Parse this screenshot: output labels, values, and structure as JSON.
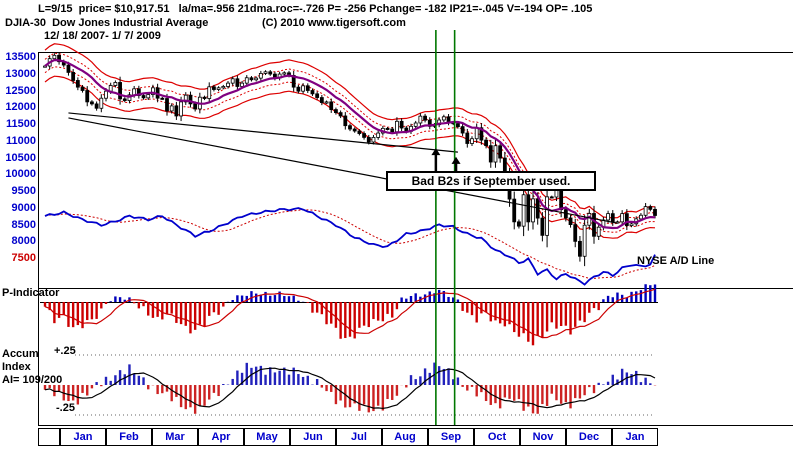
{
  "header": {
    "stats_line": "L=9/15  price= $10,917.51   la/ma=.956 21dma.roc=-.726 P= -256 Pchange= -182 IP21=-.045 V=-194 OP= .105",
    "title": "DJIA-30  Dow Jones Industrial Average",
    "copyright": "(C) 2010 www.tigersoft.com",
    "date_range": "12/ 18/ 2007- 1/ 7/ 2009"
  },
  "labels": {
    "p_indicator": "P-Indicator",
    "accum_1": "Accum",
    "accum_2": "Index",
    "accum_3": "AI= 109/200",
    "plus": "+.25",
    "minus": "-.25",
    "ad_line": "NYSE A/D Line",
    "annotation": "Bad B2s if September used."
  },
  "chart_data": {
    "type": "candlestick",
    "title": "DJIA-30 Dow Jones Industrial Average",
    "period": "12/18/2007 - 1/7/2009",
    "ylim": [
      7500,
      13500
    ],
    "y_ticks": [
      13500,
      13000,
      12500,
      12000,
      11500,
      11000,
      10500,
      10000,
      9500,
      9000,
      8500,
      8000,
      7500
    ],
    "axis_highlight_tick": 7500,
    "months": [
      "Jan",
      "Feb",
      "Mar",
      "Apr",
      "May",
      "Jun",
      "Jul",
      "Aug",
      "Sep",
      "Oct",
      "Nov",
      "Dec",
      "Jan"
    ],
    "close": [
      13230,
      13450,
      13550,
      13360,
      13260,
      13040,
      12800,
      12600,
      12500,
      12160,
      12100,
      11970,
      12270,
      12480,
      12650,
      12740,
      12250,
      12200,
      12370,
      12550,
      12350,
      12280,
      12380,
      12580,
      12270,
      12260,
      11890,
      12040,
      11740,
      12160,
      12360,
      12100,
      11950,
      12300,
      12260,
      12610,
      12530,
      12580,
      12620,
      12720,
      12850,
      12620,
      12720,
      12880,
      12820,
      12870,
      13010,
      13058,
      12990,
      12870,
      12990,
      13028,
      12950,
      12600,
      12480,
      12640,
      12500,
      12400,
      12290,
      12140,
      12160,
      11930,
      11840,
      11740,
      11450,
      11350,
      11290,
      11215,
      11100,
      10963,
      11100,
      11230,
      11370,
      11350,
      11270,
      11580,
      11380,
      11280,
      11430,
      11530,
      11734,
      11615,
      11430,
      11480,
      11620,
      11715,
      11544,
      11511,
      11422,
      11230,
      10918,
      11060,
      11388,
      11019,
      10854,
      10365,
      10851,
      10483,
      9955,
      9258,
      8579,
      8451,
      9387,
      8578,
      9265,
      8691,
      8176,
      9325,
      9320,
      9625,
      8943,
      8696,
      8497,
      7997,
      7552,
      8479,
      8829,
      8149,
      8419,
      8635,
      8824,
      8565,
      8579,
      8824,
      8468,
      8519,
      8668,
      8776,
      9034,
      8952,
      8769
    ],
    "ma_window": 10,
    "band_pct": 0.036,
    "inner_band_pct": 0.015,
    "ad_line": {
      "name": "NYSE A/D Line",
      "anchors": [
        [
          0,
          0.8
        ],
        [
          4,
          0.84
        ],
        [
          8,
          0.76
        ],
        [
          12,
          0.7
        ],
        [
          15,
          0.74
        ],
        [
          18,
          0.8
        ],
        [
          22,
          0.76
        ],
        [
          25,
          0.8
        ],
        [
          28,
          0.7
        ],
        [
          32,
          0.58
        ],
        [
          35,
          0.63
        ],
        [
          38,
          0.7
        ],
        [
          42,
          0.8
        ],
        [
          46,
          0.84
        ],
        [
          50,
          0.87
        ],
        [
          55,
          0.88
        ],
        [
          58,
          0.8
        ],
        [
          62,
          0.7
        ],
        [
          66,
          0.56
        ],
        [
          70,
          0.48
        ],
        [
          73,
          0.46
        ],
        [
          77,
          0.6
        ],
        [
          80,
          0.63
        ],
        [
          84,
          0.7
        ],
        [
          87,
          0.68
        ],
        [
          90,
          0.6
        ],
        [
          93,
          0.55
        ],
        [
          96,
          0.42
        ],
        [
          99,
          0.35
        ],
        [
          101,
          0.28
        ],
        [
          103,
          0.32
        ],
        [
          105,
          0.16
        ],
        [
          107,
          0.2
        ],
        [
          109,
          0.1
        ],
        [
          111,
          0.16
        ],
        [
          113,
          0.1
        ],
        [
          115,
          0.05
        ],
        [
          117,
          0.12
        ],
        [
          119,
          0.18
        ],
        [
          121,
          0.14
        ],
        [
          123,
          0.22
        ],
        [
          125,
          0.26
        ],
        [
          127,
          0.24
        ],
        [
          129,
          0.26
        ],
        [
          130,
          0.36
        ]
      ]
    },
    "p_indicator": {
      "name": "P-Indicator",
      "anchors": [
        [
          0,
          -0.15
        ],
        [
          2,
          -0.4
        ],
        [
          4,
          -0.3
        ],
        [
          6,
          -0.55
        ],
        [
          8,
          -0.5
        ],
        [
          10,
          -0.45
        ],
        [
          12,
          -0.25
        ],
        [
          14,
          0.1
        ],
        [
          16,
          0.25
        ],
        [
          18,
          0.15
        ],
        [
          20,
          -0.1
        ],
        [
          22,
          -0.3
        ],
        [
          24,
          -0.45
        ],
        [
          26,
          -0.25
        ],
        [
          28,
          -0.35
        ],
        [
          30,
          -0.55
        ],
        [
          32,
          -0.65
        ],
        [
          34,
          -0.5
        ],
        [
          36,
          -0.3
        ],
        [
          38,
          -0.15
        ],
        [
          40,
          0.2
        ],
        [
          42,
          0.3
        ],
        [
          44,
          0.35
        ],
        [
          46,
          0.3
        ],
        [
          48,
          0.25
        ],
        [
          50,
          0.35
        ],
        [
          52,
          0.3
        ],
        [
          54,
          0.15
        ],
        [
          56,
          -0.1
        ],
        [
          58,
          -0.3
        ],
        [
          60,
          -0.45
        ],
        [
          62,
          -0.6
        ],
        [
          64,
          -0.8
        ],
        [
          66,
          -0.7
        ],
        [
          68,
          -0.55
        ],
        [
          70,
          -0.5
        ],
        [
          72,
          -0.4
        ],
        [
          74,
          -0.3
        ],
        [
          76,
          0.15
        ],
        [
          78,
          0.3
        ],
        [
          80,
          0.25
        ],
        [
          82,
          0.3
        ],
        [
          84,
          0.45
        ],
        [
          86,
          0.3
        ],
        [
          88,
          0.1
        ],
        [
          90,
          -0.25
        ],
        [
          92,
          -0.4
        ],
        [
          94,
          -0.3
        ],
        [
          96,
          -0.5
        ],
        [
          98,
          -0.45
        ],
        [
          100,
          -0.6
        ],
        [
          102,
          -0.75
        ],
        [
          104,
          -0.95
        ],
        [
          106,
          -0.8
        ],
        [
          108,
          -0.55
        ],
        [
          110,
          -0.5
        ],
        [
          112,
          -0.6
        ],
        [
          114,
          -0.45
        ],
        [
          116,
          -0.3
        ],
        [
          118,
          -0.15
        ],
        [
          120,
          0.2
        ],
        [
          122,
          0.35
        ],
        [
          124,
          0.3
        ],
        [
          126,
          0.45
        ],
        [
          128,
          0.6
        ],
        [
          130,
          0.7
        ]
      ]
    },
    "accum_index": {
      "name": "Accum Index",
      "value_label": "AI= 109/200",
      "range": [
        -0.25,
        0.25
      ],
      "anchors": [
        [
          0,
          -0.04
        ],
        [
          3,
          -0.1
        ],
        [
          6,
          -0.13
        ],
        [
          9,
          -0.08
        ],
        [
          12,
          0.02
        ],
        [
          15,
          0.1
        ],
        [
          18,
          0.12
        ],
        [
          21,
          0.05
        ],
        [
          24,
          -0.05
        ],
        [
          27,
          -0.12
        ],
        [
          30,
          -0.18
        ],
        [
          33,
          -0.21
        ],
        [
          36,
          -0.1
        ],
        [
          39,
          0.04
        ],
        [
          42,
          0.12
        ],
        [
          45,
          0.16
        ],
        [
          48,
          0.13
        ],
        [
          51,
          0.1
        ],
        [
          54,
          0.12
        ],
        [
          57,
          0.04
        ],
        [
          60,
          -0.06
        ],
        [
          63,
          -0.14
        ],
        [
          66,
          -0.19
        ],
        [
          69,
          -0.22
        ],
        [
          72,
          -0.16
        ],
        [
          75,
          -0.1
        ],
        [
          78,
          0.06
        ],
        [
          81,
          0.12
        ],
        [
          84,
          0.15
        ],
        [
          87,
          0.1
        ],
        [
          90,
          -0.04
        ],
        [
          93,
          -0.1
        ],
        [
          96,
          -0.16
        ],
        [
          99,
          -0.12
        ],
        [
          102,
          -0.18
        ],
        [
          105,
          -0.22
        ],
        [
          108,
          -0.12
        ],
        [
          111,
          -0.16
        ],
        [
          114,
          -0.1
        ],
        [
          117,
          -0.05
        ],
        [
          120,
          0.06
        ],
        [
          123,
          0.1
        ],
        [
          126,
          0.08
        ],
        [
          129,
          0.04
        ],
        [
          130,
          0.02
        ]
      ]
    },
    "event_lines": {
      "indices": [
        83.3,
        87.3
      ],
      "color": "#007700"
    },
    "trendlines": [
      {
        "from": [
          5,
          11830
        ],
        "to": [
          88,
          10660
        ]
      },
      {
        "from": [
          5,
          11680
        ],
        "to": [
          122,
          8540
        ]
      }
    ],
    "arrows": [
      {
        "i": 83.3,
        "tip_price": 10780
      },
      {
        "i": 87.6,
        "tip_price": 10520
      }
    ],
    "annotation": "Bad B2s if September used.",
    "colors": {
      "axis_text": "#0000cc",
      "axis_highlight": "#cc0000",
      "candle": "#000000",
      "ma": "#800080",
      "band": "#dd0000",
      "ad_line": "#0000cc",
      "green_line": "#007700",
      "p_pos": "#0000bb",
      "p_neg": "#cc0000",
      "accum_pos": "#2222bb",
      "accum_neg": "#cc2222",
      "month_text": "#0000cc"
    }
  }
}
